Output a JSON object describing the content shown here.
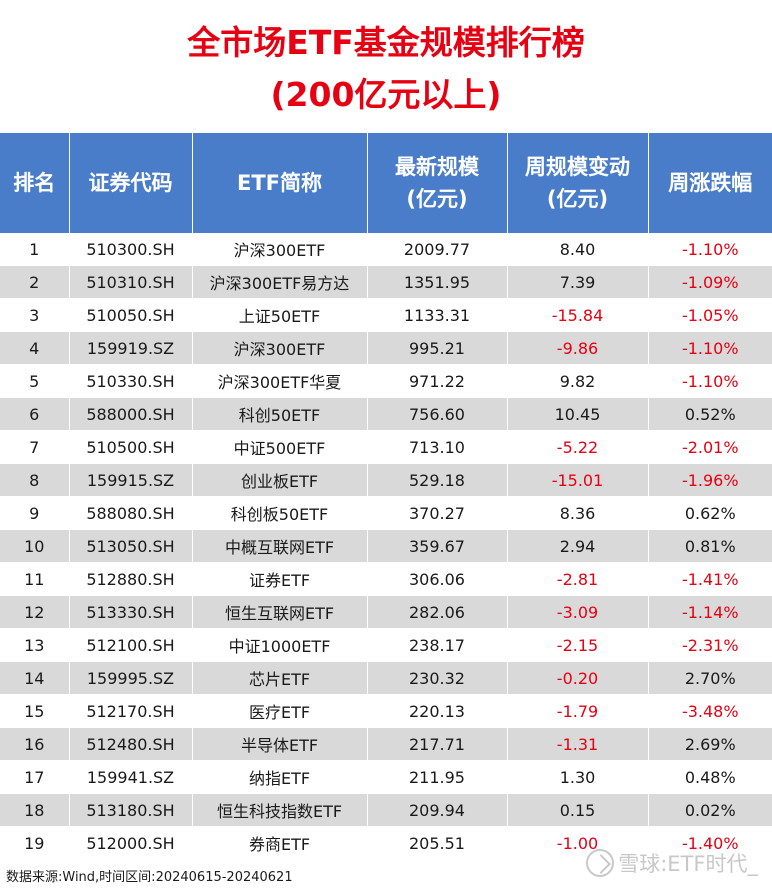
{
  "title_line1": "全市场ETF基金规模排行榜",
  "title_line2": "(200亿元以上)",
  "headers": {
    "rank": "排名",
    "code": "证券代码",
    "name": "ETF简称",
    "scale_line1": "最新规模",
    "scale_line2": "(亿元)",
    "change_line1": "周规模变动",
    "change_line2": "(亿元)",
    "pct": "周涨跌幅"
  },
  "rows": [
    {
      "rank": "1",
      "code": "510300.SH",
      "name": "沪深300ETF",
      "scale": "2009.77",
      "change": "8.40",
      "pct": "-1.10%"
    },
    {
      "rank": "2",
      "code": "510310.SH",
      "name": "沪深300ETF易方达",
      "scale": "1351.95",
      "change": "7.39",
      "pct": "-1.09%"
    },
    {
      "rank": "3",
      "code": "510050.SH",
      "name": "上证50ETF",
      "scale": "1133.31",
      "change": "-15.84",
      "pct": "-1.05%"
    },
    {
      "rank": "4",
      "code": "159919.SZ",
      "name": "沪深300ETF",
      "scale": "995.21",
      "change": "-9.86",
      "pct": "-1.10%"
    },
    {
      "rank": "5",
      "code": "510330.SH",
      "name": "沪深300ETF华夏",
      "scale": "971.22",
      "change": "9.82",
      "pct": "-1.10%"
    },
    {
      "rank": "6",
      "code": "588000.SH",
      "name": "科创50ETF",
      "scale": "756.60",
      "change": "10.45",
      "pct": "0.52%"
    },
    {
      "rank": "7",
      "code": "510500.SH",
      "name": "中证500ETF",
      "scale": "713.10",
      "change": "-5.22",
      "pct": "-2.01%"
    },
    {
      "rank": "8",
      "code": "159915.SZ",
      "name": "创业板ETF",
      "scale": "529.18",
      "change": "-15.01",
      "pct": "-1.96%"
    },
    {
      "rank": "9",
      "code": "588080.SH",
      "name": "科创板50ETF",
      "scale": "370.27",
      "change": "8.36",
      "pct": "0.62%"
    },
    {
      "rank": "10",
      "code": "513050.SH",
      "name": "中概互联网ETF",
      "scale": "359.67",
      "change": "2.94",
      "pct": "0.81%"
    },
    {
      "rank": "11",
      "code": "512880.SH",
      "name": "证券ETF",
      "scale": "306.06",
      "change": "-2.81",
      "pct": "-1.41%"
    },
    {
      "rank": "12",
      "code": "513330.SH",
      "name": "恒生互联网ETF",
      "scale": "282.06",
      "change": "-3.09",
      "pct": "-1.14%"
    },
    {
      "rank": "13",
      "code": "512100.SH",
      "name": "中证1000ETF",
      "scale": "238.17",
      "change": "-2.15",
      "pct": "-2.31%"
    },
    {
      "rank": "14",
      "code": "159995.SZ",
      "name": "芯片ETF",
      "scale": "230.32",
      "change": "-0.20",
      "pct": "2.70%"
    },
    {
      "rank": "15",
      "code": "512170.SH",
      "name": "医疗ETF",
      "scale": "220.13",
      "change": "-1.79",
      "pct": "-3.48%"
    },
    {
      "rank": "16",
      "code": "512480.SH",
      "name": "半导体ETF",
      "scale": "217.71",
      "change": "-1.31",
      "pct": "2.69%"
    },
    {
      "rank": "17",
      "code": "159941.SZ",
      "name": "纳指ETF",
      "scale": "211.95",
      "change": "1.30",
      "pct": "0.48%"
    },
    {
      "rank": "18",
      "code": "513180.SH",
      "name": "恒生科技指数ETF",
      "scale": "209.94",
      "change": "0.15",
      "pct": "0.02%"
    },
    {
      "rank": "19",
      "code": "512000.SH",
      "name": "券商ETF",
      "scale": "205.51",
      "change": "-1.00",
      "pct": "-1.40%"
    }
  ],
  "footer": {
    "source": "数据来源:Wind,时间区间:20240615-20240621",
    "watermark": "雪球:ETF时代_"
  },
  "colors": {
    "title_red": "#e60012",
    "header_blue": "#4a7dc9",
    "stripe_gray": "#d9d9d9",
    "negative_red": "#e60012"
  }
}
